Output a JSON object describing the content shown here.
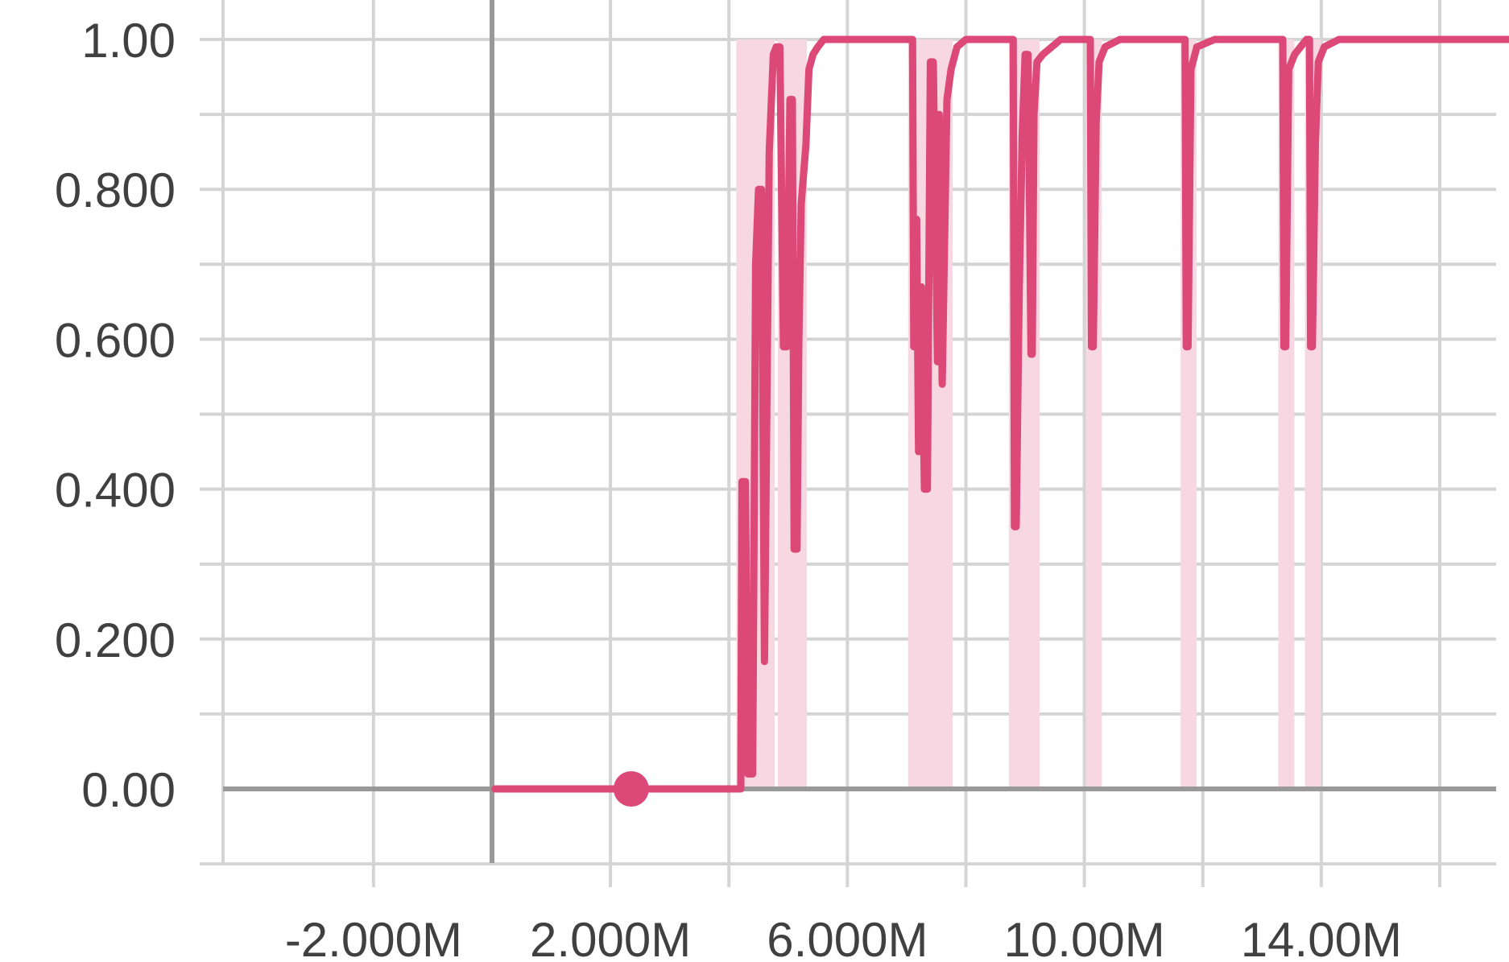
{
  "chart_data": {
    "type": "line",
    "title": "",
    "xlabel": "",
    "ylabel": "",
    "xlim": [
      -2.5,
      17.3
    ],
    "ylim": [
      -0.1,
      1.05
    ],
    "grid": true,
    "legend": "none",
    "x_major_ticks": [
      -2,
      2,
      6,
      10,
      14
    ],
    "x_tick_labels": [
      "-2.000M",
      "2.000M",
      "6.000M",
      "10.00M",
      "14.00M"
    ],
    "x_minor_ticks": [
      0,
      4,
      8,
      12,
      16
    ],
    "y_major_ticks": [
      0,
      0.2,
      0.4,
      0.6,
      0.8,
      1
    ],
    "y_tick_labels": [
      "0.00",
      "0.200",
      "0.400",
      "0.600",
      "0.800",
      "1.00"
    ],
    "y_minor_ticks": [
      -0.1,
      0.1,
      0.3,
      0.5,
      0.7,
      0.9
    ],
    "colors": {
      "series": "#dc4878",
      "raw_series": "#f6d7e2",
      "axis": "#999999",
      "grid": "#d4d4d4",
      "text": "#404040"
    },
    "marker": {
      "x": 2.35,
      "y": 0
    },
    "series": [
      {
        "role": "smoothed",
        "x": [
          0.05,
          1.0,
          2.35,
          3.5,
          4.2,
          4.22,
          4.28,
          4.32,
          4.4,
          4.45,
          4.5,
          4.55,
          4.6,
          4.68,
          4.75,
          4.8,
          4.86,
          4.92,
          4.98,
          5.03,
          5.07,
          5.1,
          5.15,
          5.18,
          5.22,
          5.3,
          5.35,
          5.42,
          5.5,
          5.6,
          5.75,
          6.0,
          7.1,
          7.12,
          7.14,
          7.17,
          7.2,
          7.25,
          7.3,
          7.35,
          7.4,
          7.45,
          7.52,
          7.55,
          7.6,
          7.68,
          7.75,
          7.85,
          8.0,
          8.3,
          8.8,
          8.82,
          8.85,
          8.9,
          8.95,
          9.0,
          9.05,
          9.1,
          9.12,
          9.15,
          9.2,
          9.3,
          9.45,
          9.6,
          9.8,
          10.1,
          10.12,
          10.15,
          10.2,
          10.25,
          10.35,
          10.6,
          11.7,
          11.72,
          11.75,
          11.8,
          11.9,
          12.2,
          12.6,
          13.35,
          13.37,
          13.4,
          13.45,
          13.55,
          13.65,
          13.75,
          13.8,
          13.82,
          13.85,
          13.9,
          13.95,
          14.05,
          14.3,
          17.3
        ],
        "y": [
          0,
          0,
          0,
          0,
          0,
          0.41,
          0.41,
          0.02,
          0.02,
          0.7,
          0.8,
          0.8,
          0.17,
          0.85,
          0.98,
          0.99,
          0.99,
          0.59,
          0.59,
          0.92,
          0.92,
          0.32,
          0.32,
          0.6,
          0.78,
          0.86,
          0.96,
          0.98,
          0.99,
          1.0,
          1.0,
          1.0,
          1.0,
          0.59,
          0.59,
          0.76,
          0.45,
          0.67,
          0.4,
          0.4,
          0.97,
          0.97,
          0.57,
          0.9,
          0.54,
          0.92,
          0.96,
          0.99,
          1.0,
          1.0,
          1.0,
          0.35,
          0.35,
          0.66,
          0.87,
          0.98,
          0.98,
          0.58,
          0.58,
          0.9,
          0.97,
          0.98,
          0.99,
          1.0,
          1.0,
          1.0,
          0.59,
          0.59,
          0.89,
          0.97,
          0.99,
          1.0,
          1.0,
          0.59,
          0.59,
          0.96,
          0.99,
          1.0,
          1.0,
          1.0,
          0.59,
          0.59,
          0.96,
          0.98,
          0.99,
          1.0,
          1.0,
          0.59,
          0.59,
          0.86,
          0.97,
          0.99,
          1.0,
          1.0
        ]
      }
    ]
  }
}
